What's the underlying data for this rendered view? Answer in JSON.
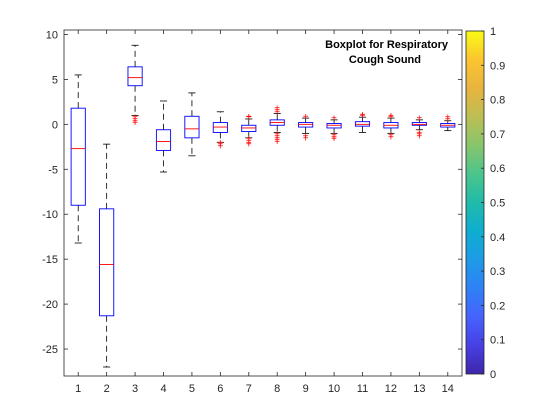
{
  "chart_data": {
    "type": "boxplot",
    "title_lines": [
      "Boxplot for Respiratory",
      "Cough Sound"
    ],
    "xlabel": "",
    "ylabel": "",
    "ylim": [
      -28,
      10.5
    ],
    "xlim": [
      0.5,
      14.5
    ],
    "yticks": [
      10,
      5,
      0,
      -5,
      -10,
      -15,
      -20,
      -25
    ],
    "ytick_labels": [
      "10",
      "5",
      "0",
      "-5",
      "-10",
      "-15",
      "-20",
      "-25"
    ],
    "categories": [
      "1",
      "2",
      "3",
      "4",
      "5",
      "6",
      "7",
      "8",
      "9",
      "10",
      "11",
      "12",
      "13",
      "14"
    ],
    "boxes": [
      {
        "cat": "1",
        "whisker_low": -13.2,
        "q1": -9.0,
        "median": -2.7,
        "q3": 1.8,
        "whisker_high": 5.5,
        "outliers": []
      },
      {
        "cat": "2",
        "whisker_low": -27.0,
        "q1": -21.3,
        "median": -15.6,
        "q3": -9.4,
        "whisker_high": -2.2,
        "outliers": []
      },
      {
        "cat": "3",
        "whisker_low": 1.0,
        "q1": 4.3,
        "median": 5.2,
        "q3": 6.4,
        "whisker_high": 8.8,
        "outliers": [
          0.2,
          0.4,
          0.6,
          0.8
        ]
      },
      {
        "cat": "4",
        "whisker_low": -5.3,
        "q1": -2.9,
        "median": -1.9,
        "q3": -0.6,
        "whisker_high": 2.6,
        "outliers": []
      },
      {
        "cat": "5",
        "whisker_low": -3.5,
        "q1": -1.5,
        "median": -0.5,
        "q3": 0.9,
        "whisker_high": 3.5,
        "outliers": []
      },
      {
        "cat": "6",
        "whisker_low": -2.0,
        "q1": -0.9,
        "median": -0.3,
        "q3": 0.2,
        "whisker_high": 1.4,
        "outliers": [
          -2.0,
          -2.2,
          -2.4
        ]
      },
      {
        "cat": "7",
        "whisker_low": -1.5,
        "q1": -0.8,
        "median": -0.4,
        "q3": -0.1,
        "whisker_high": 0.6,
        "outliers": [
          -1.6,
          -1.8,
          -2.0,
          -2.2,
          0.8,
          0.9
        ]
      },
      {
        "cat": "8",
        "whisker_low": -0.9,
        "q1": -0.1,
        "median": 0.2,
        "q3": 0.5,
        "whisker_high": 1.2,
        "outliers": [
          -1.1,
          -1.3,
          -1.5,
          -1.7,
          -1.9,
          1.4,
          1.6,
          1.8
        ]
      },
      {
        "cat": "9",
        "whisker_low": -1.0,
        "q1": -0.3,
        "median": 0.0,
        "q3": 0.2,
        "whisker_high": 0.7,
        "outliers": [
          -1.3,
          -1.5,
          0.9
        ]
      },
      {
        "cat": "10",
        "whisker_low": -1.0,
        "q1": -0.4,
        "median": -0.1,
        "q3": 0.1,
        "whisker_high": 0.5,
        "outliers": [
          -1.2,
          -1.4,
          -1.6,
          0.7
        ]
      },
      {
        "cat": "11",
        "whisker_low": -0.9,
        "q1": -0.2,
        "median": 0.0,
        "q3": 0.3,
        "whisker_high": 0.8,
        "outliers": [
          1.0,
          1.1
        ]
      },
      {
        "cat": "12",
        "whisker_low": -1.0,
        "q1": -0.4,
        "median": -0.1,
        "q3": 0.2,
        "whisker_high": 0.7,
        "outliers": [
          -1.2,
          -1.4,
          0.9,
          1.0
        ]
      },
      {
        "cat": "13",
        "whisker_low": -0.6,
        "q1": -0.1,
        "median": 0.0,
        "q3": 0.2,
        "whisker_high": 0.5,
        "outliers": [
          -0.9,
          -1.1,
          -1.3,
          0.7
        ]
      },
      {
        "cat": "14",
        "whisker_low": -0.7,
        "q1": -0.3,
        "median": -0.1,
        "q3": 0.1,
        "whisker_high": 0.4,
        "outliers": [
          0.6,
          0.8
        ]
      }
    ],
    "colorbar": {
      "colormap": "parula",
      "range": [
        0,
        1
      ],
      "ticks": [
        1,
        0.9,
        0.8,
        0.7,
        0.6,
        0.5,
        0.4,
        0.3,
        0.2,
        0.1,
        0
      ],
      "tick_labels": [
        "1",
        "0.9",
        "0.8",
        "0.7",
        "0.6",
        "0.5",
        "0.4",
        "0.3",
        "0.2",
        "0.1",
        "0"
      ],
      "stops": [
        "#3e26a8",
        "#4740e5",
        "#4563fd",
        "#2f81f5",
        "#1d9be7",
        "#0eaed0",
        "#20bba9",
        "#4bc58b",
        "#87c56d",
        "#bdbe53",
        "#e8b43f",
        "#fbc52f",
        "#f9fb15"
      ]
    },
    "colors": {
      "box": "#0000ff",
      "median": "#ff0000",
      "whisker": "#000000",
      "outlier": "#ff0000",
      "axes": "#262626"
    }
  }
}
